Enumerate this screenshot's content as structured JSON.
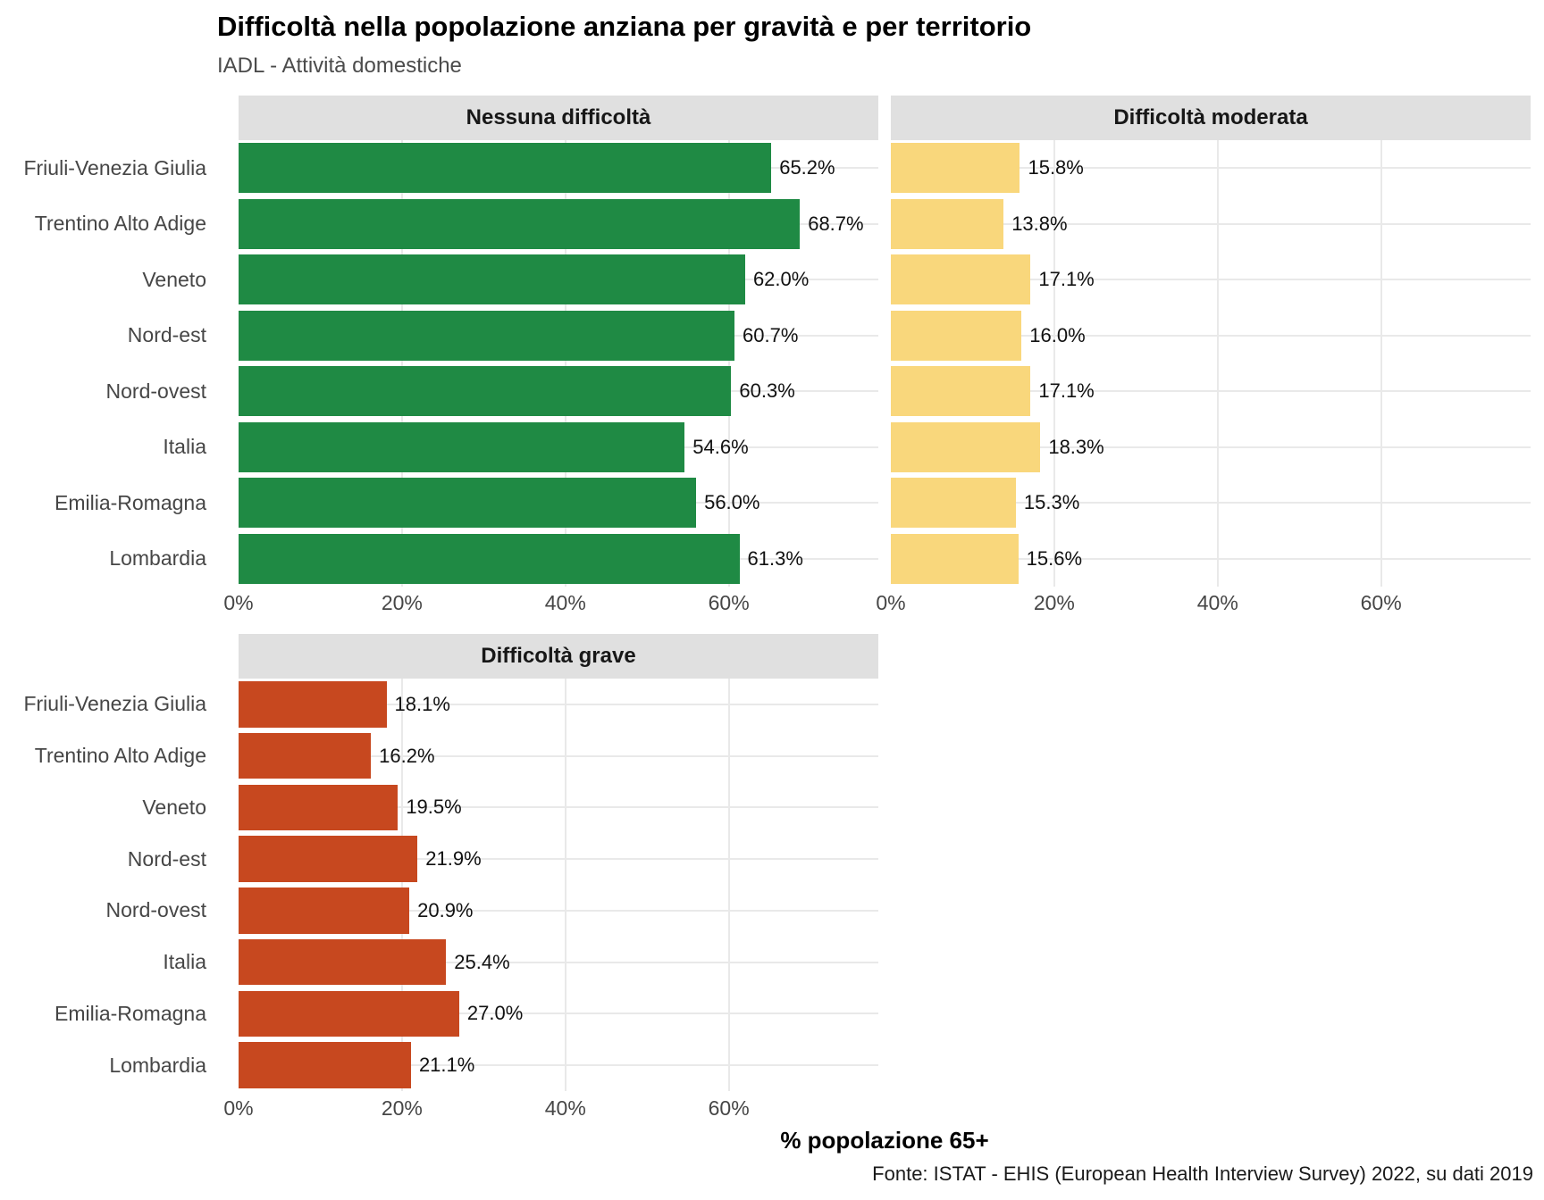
{
  "title": "Difficoltà nella popolazione anziana per gravità e per territorio",
  "subtitle": "IADL - Attività domestiche",
  "xlabel": "% popolazione 65+",
  "caption": "Fonte: ISTAT - EHIS (European Health Interview Survey) 2022, su dati 2019",
  "chart_data": {
    "type": "bar",
    "orientation": "horizontal",
    "categories": [
      "Friuli-Venezia Giulia",
      "Trentino Alto Adige",
      "Veneto",
      "Nord-est",
      "Nord-ovest",
      "Italia",
      "Emilia-Romagna",
      "Lombardia"
    ],
    "facets": [
      {
        "label": "Nessuna difficoltà",
        "color": "#1f8a44",
        "values": [
          65.2,
          68.7,
          62.0,
          60.7,
          60.3,
          54.6,
          56.0,
          61.3
        ]
      },
      {
        "label": "Difficoltà moderata",
        "color": "#f9d77c",
        "values": [
          15.8,
          13.8,
          17.1,
          16.0,
          17.1,
          18.3,
          15.3,
          15.6
        ]
      },
      {
        "label": "Difficoltà grave",
        "color": "#c7481f",
        "values": [
          18.1,
          16.2,
          19.5,
          21.9,
          20.9,
          25.4,
          27.0,
          21.1
        ]
      }
    ],
    "x_ticks": [
      "0%",
      "20%",
      "40%",
      "60%"
    ],
    "x_tick_values": [
      0,
      20,
      40,
      60
    ],
    "x_max": 78.3,
    "value_suffix": "%",
    "grid": true,
    "legend": "none",
    "strip_bg": "#e0e0e0",
    "gridline_color": "#e9e9e9"
  }
}
